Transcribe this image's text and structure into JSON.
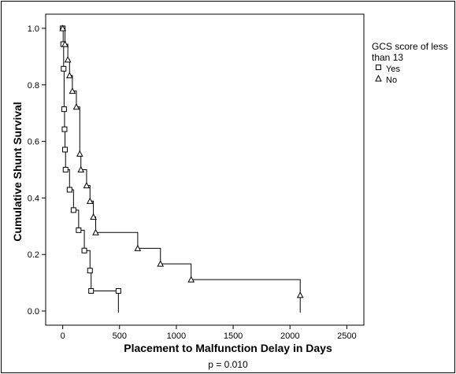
{
  "chart_data": {
    "type": "step",
    "xlabel": "Placement to Malfunction Delay in Days",
    "ylabel": "Cumulative Shunt Survival",
    "footnote": "p = 0.010",
    "xlim": [
      -150,
      2650
    ],
    "ylim": [
      -0.05,
      1.05
    ],
    "xticks": [
      0,
      500,
      1000,
      1500,
      2000,
      2500
    ],
    "yticks": [
      0.0,
      0.2,
      0.4,
      0.6,
      0.8,
      1.0
    ],
    "legend": {
      "title": "GCS score of less than 13",
      "position": "right"
    },
    "series": [
      {
        "name": "Yes",
        "marker": "square",
        "points": [
          [
            0,
            1.0
          ],
          [
            4,
            0.944
          ],
          [
            8,
            0.857
          ],
          [
            12,
            0.714
          ],
          [
            16,
            0.643
          ],
          [
            20,
            0.571
          ],
          [
            25,
            0.5
          ],
          [
            60,
            0.429
          ],
          [
            95,
            0.357
          ],
          [
            140,
            0.286
          ],
          [
            190,
            0.214
          ],
          [
            240,
            0.143
          ],
          [
            250,
            0.071
          ],
          [
            490,
            0.071
          ]
        ],
        "end_x": 490
      },
      {
        "name": "No",
        "marker": "triangle",
        "points": [
          [
            0,
            1.0
          ],
          [
            20,
            0.944
          ],
          [
            45,
            0.889
          ],
          [
            60,
            0.833
          ],
          [
            85,
            0.778
          ],
          [
            120,
            0.722
          ],
          [
            150,
            0.556
          ],
          [
            160,
            0.5
          ],
          [
            210,
            0.444
          ],
          [
            240,
            0.389
          ],
          [
            270,
            0.333
          ],
          [
            290,
            0.278
          ],
          [
            660,
            0.222
          ],
          [
            860,
            0.167
          ],
          [
            1130,
            0.111
          ],
          [
            2090,
            0.056
          ]
        ],
        "end_x": 2090
      }
    ],
    "grid": false
  }
}
